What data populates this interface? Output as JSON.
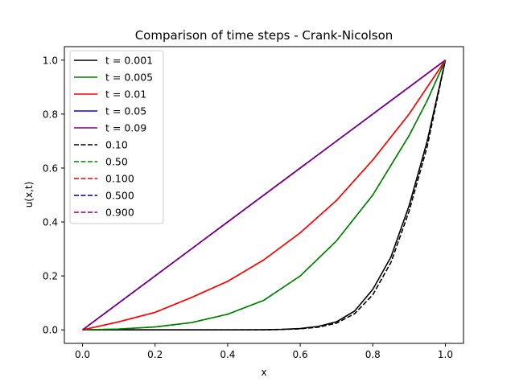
{
  "chart_data": {
    "type": "line",
    "title": "Comparison of time steps - Crank-Nicolson",
    "xlabel": "x",
    "ylabel": "u(x,t)",
    "xlim": [
      -0.05,
      1.05
    ],
    "ylim": [
      -0.05,
      1.05
    ],
    "xticks": [
      "0.0",
      "0.2",
      "0.4",
      "0.6",
      "0.8",
      "1.0"
    ],
    "yticks": [
      "0.0",
      "0.2",
      "0.4",
      "0.6",
      "0.8",
      "1.0"
    ],
    "grid": false,
    "legend_position": "top-left",
    "series": [
      {
        "name": "t = 0.001",
        "color": "#000000",
        "style": "solid",
        "x": [
          0,
          0.1,
          0.2,
          0.3,
          0.4,
          0.5,
          0.55,
          0.6,
          0.65,
          0.7,
          0.75,
          0.8,
          0.85,
          0.9,
          0.95,
          1.0
        ],
        "y": [
          0,
          0,
          0,
          0,
          0,
          0.0005,
          0.002,
          0.005,
          0.013,
          0.03,
          0.07,
          0.15,
          0.27,
          0.46,
          0.7,
          1.0
        ]
      },
      {
        "name": "t = 0.005",
        "color": "#008000",
        "style": "solid",
        "x": [
          0,
          0.1,
          0.2,
          0.3,
          0.4,
          0.5,
          0.6,
          0.7,
          0.8,
          0.85,
          0.9,
          0.95,
          1.0
        ],
        "y": [
          0,
          0.003,
          0.011,
          0.027,
          0.058,
          0.11,
          0.2,
          0.33,
          0.5,
          0.61,
          0.72,
          0.85,
          1.0
        ]
      },
      {
        "name": "t = 0.01",
        "color": "#ff0000",
        "style": "solid",
        "x": [
          0,
          0.1,
          0.2,
          0.3,
          0.4,
          0.5,
          0.6,
          0.7,
          0.8,
          0.9,
          1.0
        ],
        "y": [
          0,
          0.03,
          0.065,
          0.12,
          0.18,
          0.26,
          0.36,
          0.48,
          0.63,
          0.8,
          1.0
        ]
      },
      {
        "name": "t = 0.05",
        "color": "#0000ff",
        "style": "solid",
        "x": [
          0,
          0.2,
          0.4,
          0.6,
          0.8,
          1.0
        ],
        "y": [
          0,
          0.2,
          0.4,
          0.6,
          0.8,
          1.0
        ]
      },
      {
        "name": "t = 0.09",
        "color": "#800080",
        "style": "solid",
        "x": [
          0,
          0.2,
          0.4,
          0.6,
          0.8,
          1.0
        ],
        "y": [
          0,
          0.2,
          0.4,
          0.6,
          0.8,
          1.0
        ]
      },
      {
        "name": "0.10",
        "color": "#000000",
        "style": "dashed",
        "x": [
          0,
          0.1,
          0.2,
          0.3,
          0.4,
          0.5,
          0.55,
          0.6,
          0.65,
          0.7,
          0.75,
          0.8,
          0.85,
          0.9,
          0.95,
          1.0
        ],
        "y": [
          0,
          0,
          0,
          0,
          0,
          0.0003,
          0.0015,
          0.004,
          0.01,
          0.025,
          0.06,
          0.13,
          0.25,
          0.44,
          0.68,
          1.0
        ]
      },
      {
        "name": "0.50",
        "color": "#008000",
        "style": "dashed",
        "x": [
          0,
          0.1,
          0.2,
          0.3,
          0.4,
          0.5,
          0.6,
          0.7,
          0.8,
          0.85,
          0.9,
          0.95,
          1.0
        ],
        "y": [
          0,
          0.003,
          0.011,
          0.027,
          0.058,
          0.11,
          0.2,
          0.33,
          0.5,
          0.61,
          0.72,
          0.85,
          1.0
        ]
      },
      {
        "name": "0.100",
        "color": "#ff0000",
        "style": "dashed",
        "x": [
          0,
          0.1,
          0.2,
          0.3,
          0.4,
          0.5,
          0.6,
          0.7,
          0.8,
          0.9,
          1.0
        ],
        "y": [
          0,
          0.03,
          0.065,
          0.12,
          0.18,
          0.26,
          0.36,
          0.48,
          0.63,
          0.8,
          1.0
        ]
      },
      {
        "name": "0.500",
        "color": "#00008b",
        "style": "dashed",
        "x": [
          0,
          0.2,
          0.4,
          0.6,
          0.8,
          1.0
        ],
        "y": [
          0,
          0.2,
          0.4,
          0.6,
          0.8,
          1.0
        ]
      },
      {
        "name": "0.900",
        "color": "#800080",
        "style": "dashed",
        "x": [
          0,
          0.2,
          0.4,
          0.6,
          0.8,
          1.0
        ],
        "y": [
          0,
          0.2,
          0.4,
          0.6,
          0.8,
          1.0
        ]
      }
    ]
  }
}
